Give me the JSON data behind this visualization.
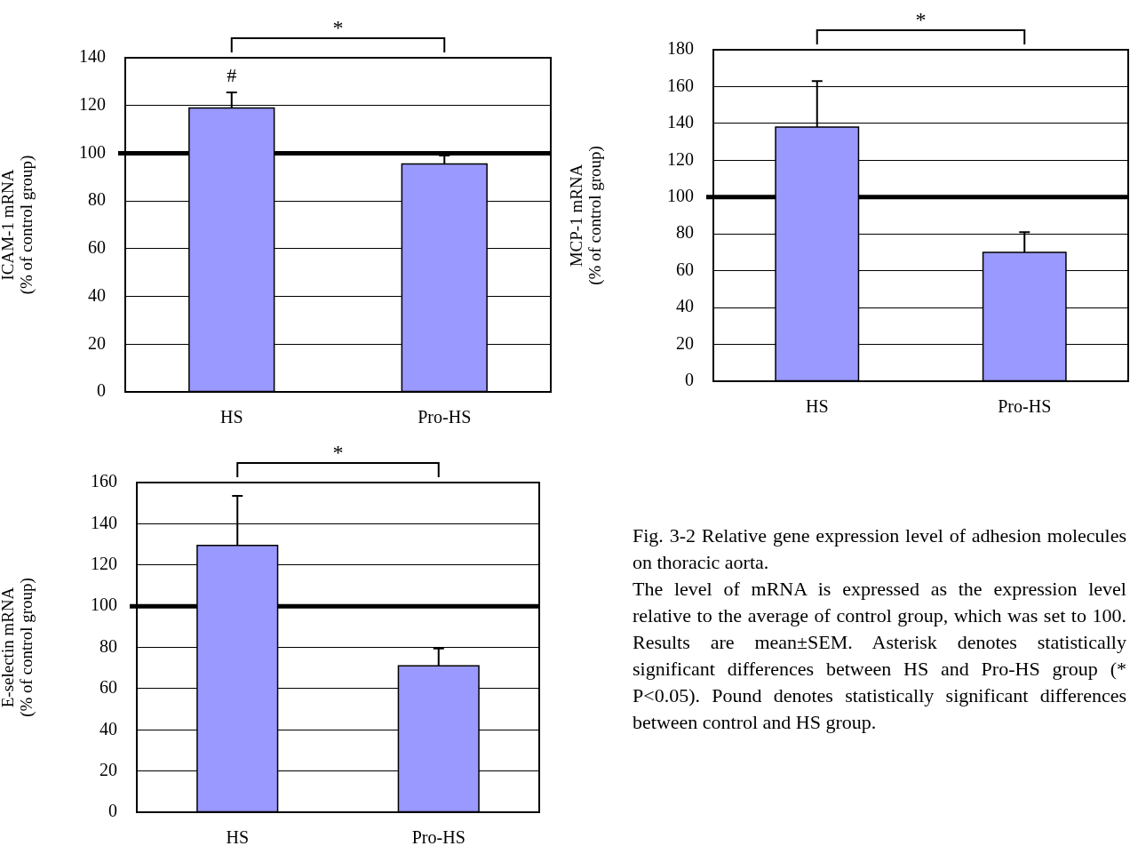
{
  "chart_data": [
    {
      "type": "bar",
      "ylabel": "ICAM-1 mRNA\n(% of control group)",
      "categories": [
        "HS",
        "Pro-HS"
      ],
      "values": [
        119,
        95.5
      ],
      "errors": [
        6.5,
        3.5
      ],
      "color": "#9999ff",
      "ylim": [
        0,
        140
      ],
      "yticks": [
        0,
        20,
        40,
        60,
        80,
        100,
        120,
        140
      ],
      "grid": "y",
      "ref_lines": [
        {
          "axis": "y",
          "value": 100,
          "color": "#000000"
        }
      ],
      "annotations": [
        "#",
        "*"
      ]
    },
    {
      "type": "bar",
      "ylabel": "MCP-1 mRNA\n(% of control group)",
      "categories": [
        "HS",
        "Pro-HS"
      ],
      "values": [
        138,
        70
      ],
      "errors": [
        25,
        11
      ],
      "color": "#9999ff",
      "ylim": [
        0,
        180
      ],
      "yticks": [
        0,
        20,
        40,
        60,
        80,
        100,
        120,
        140,
        160,
        180
      ],
      "grid": "y",
      "ref_lines": [
        {
          "axis": "y",
          "value": 100,
          "color": "#000000"
        }
      ],
      "annotations": [
        "*"
      ]
    },
    {
      "type": "bar",
      "ylabel": "E-selectin mRNA\n(% of control group)",
      "categories": [
        "HS",
        "Pro-HS"
      ],
      "values": [
        129.5,
        71
      ],
      "errors": [
        24,
        8.5
      ],
      "color": "#9999ff",
      "ylim": [
        0,
        160
      ],
      "yticks": [
        0,
        20,
        40,
        60,
        80,
        100,
        120,
        140,
        160
      ],
      "grid": "y",
      "ref_lines": [
        {
          "axis": "y",
          "value": 100,
          "color": "#000000"
        }
      ],
      "annotations": [
        "*"
      ]
    },
    {
      "type": "other",
      "title": "Fig. 3-2 Relative gene expression level of adhesion molecules on thoracic aorta.",
      "annotations": [
        "The level of mRNA is expressed as the expression level relative to the average of control group, which was set to 100. Results are mean±SEM. Asterisk denotes statistically significant differences between HS and Pro-HS group (* P<0.05). Pound denotes statistically significant differences between control and HS group."
      ]
    }
  ]
}
